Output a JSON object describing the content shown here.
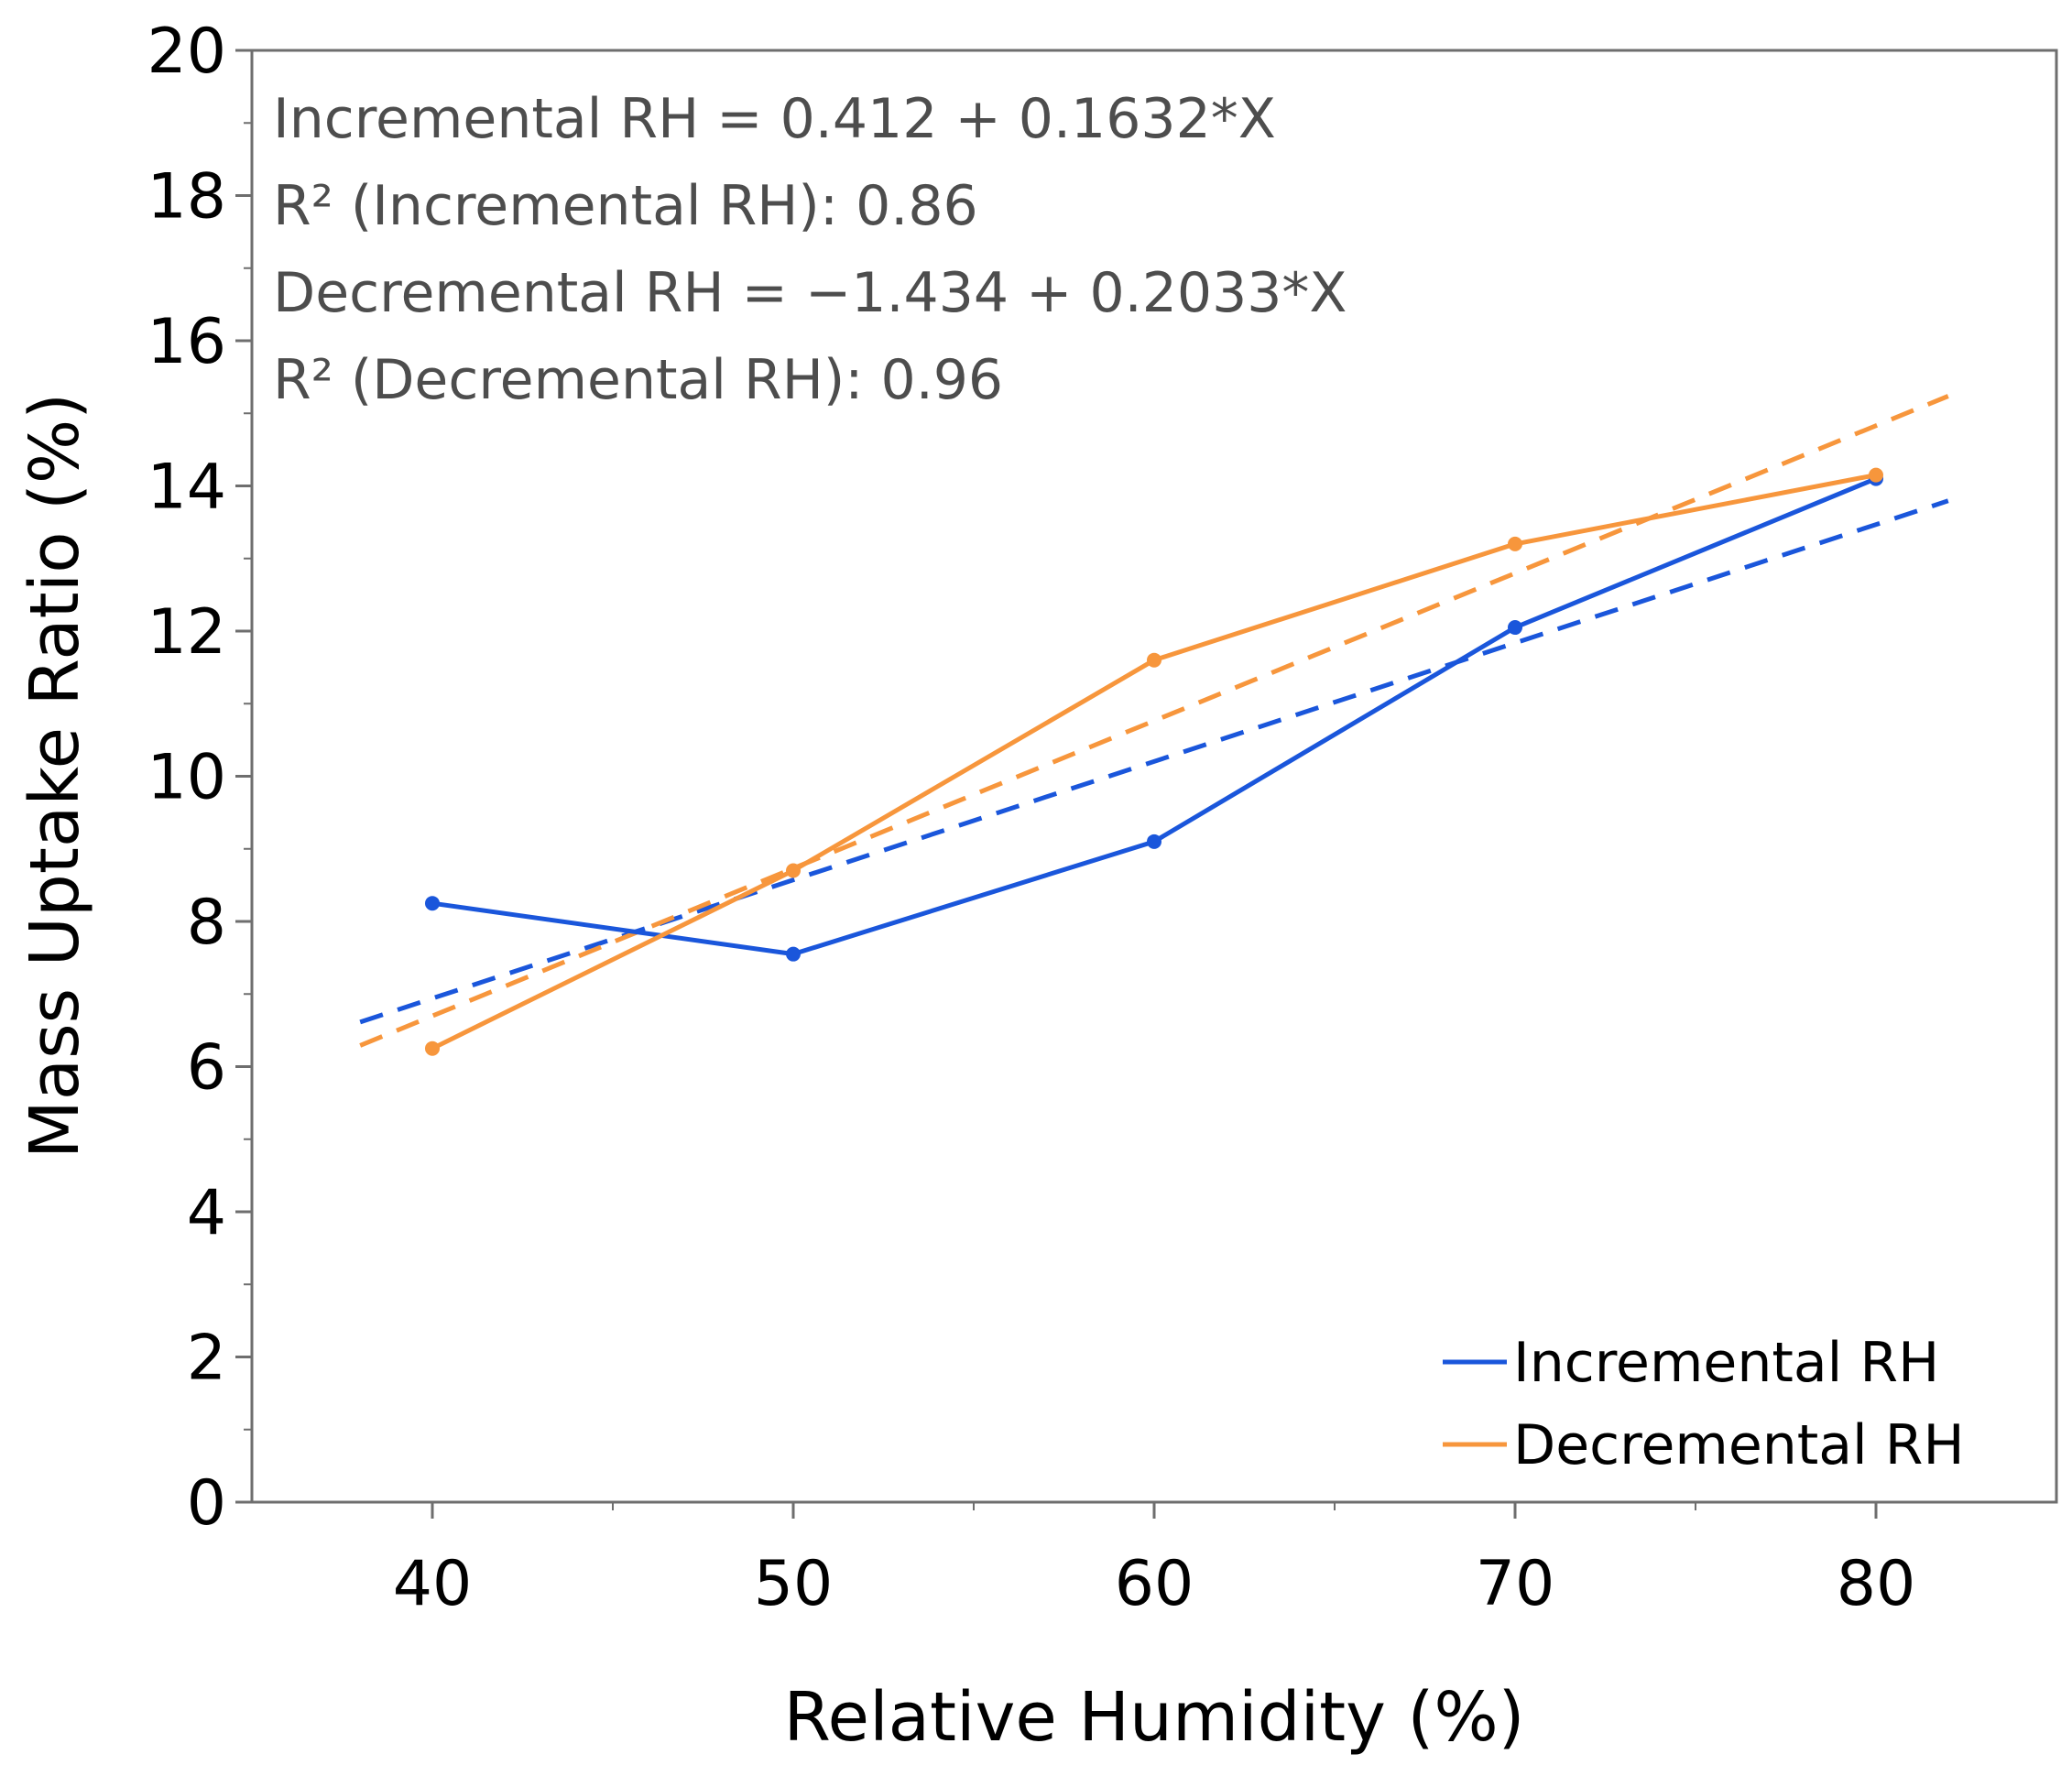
{
  "chart_data": {
    "type": "line",
    "title": "",
    "xlabel": "Relative Humidity (%)",
    "ylabel": "Mass Uptake Ratio (%)",
    "xlim": [
      35,
      85
    ],
    "ylim": [
      0,
      20
    ],
    "x_ticks": [
      40,
      50,
      60,
      70,
      80
    ],
    "x_tick_labels": [
      "40",
      "50",
      "60",
      "70",
      "80"
    ],
    "y_ticks": [
      0,
      2,
      4,
      6,
      8,
      10,
      12,
      14,
      16,
      18,
      20
    ],
    "y_tick_labels": [
      "0",
      "2",
      "4",
      "6",
      "8",
      "10",
      "12",
      "14",
      "16",
      "18",
      "20"
    ],
    "grid": false,
    "legend_position": "bottom-right",
    "series": [
      {
        "name": "Incremental RH",
        "color": "#1a56db",
        "x": [
          40,
          50,
          60,
          70,
          80
        ],
        "values": [
          8.25,
          7.55,
          9.1,
          12.05,
          14.1
        ],
        "fit": {
          "intercept": 0.412,
          "slope": 0.1632,
          "x_range": [
            38,
            82
          ]
        }
      },
      {
        "name": "Decremental RH",
        "color": "#f7963c",
        "x": [
          40,
          50,
          60,
          70,
          80
        ],
        "values": [
          6.25,
          8.7,
          11.6,
          13.2,
          14.15
        ],
        "fit": {
          "intercept": -1.434,
          "slope": 0.2033,
          "x_range": [
            38,
            82
          ]
        }
      }
    ],
    "annotations": [
      {
        "text": "Incremental RH = 0.412 + 0.1632*X"
      },
      {
        "text": "R² (Incremental RH): 0.86"
      },
      {
        "text": "Decremental RH = −1.434 + 0.2033*X"
      },
      {
        "text": "R² (Decremental RH): 0.96"
      }
    ]
  }
}
